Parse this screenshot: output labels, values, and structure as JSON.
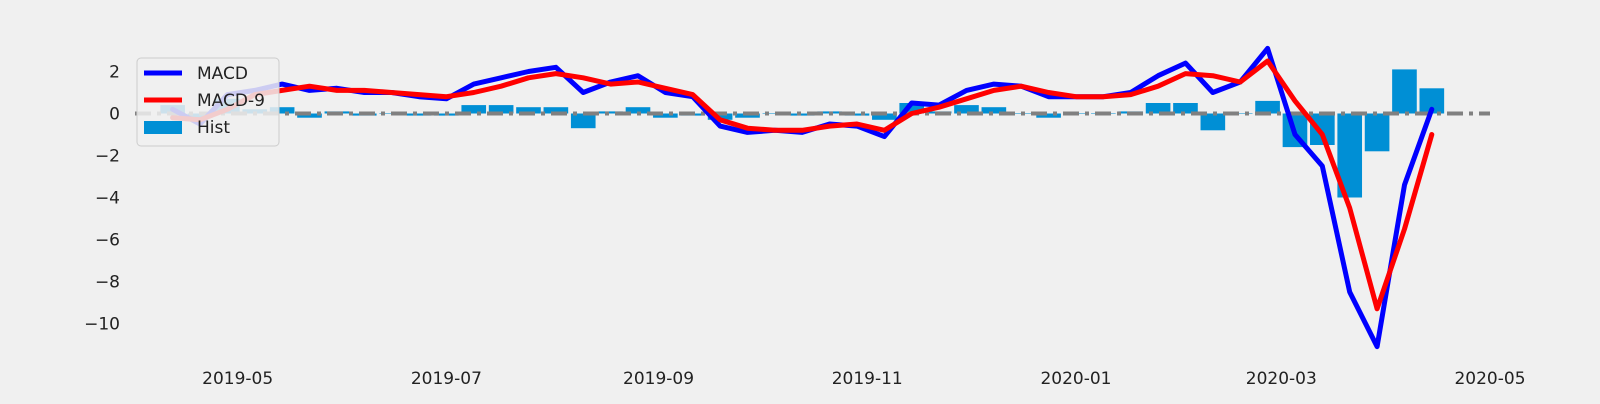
{
  "chart_data": {
    "type": "line",
    "title": "",
    "xlabel": "",
    "ylabel": "",
    "x_axis_type": "date",
    "xlim": [
      "2019-04-01",
      "2020-05-01"
    ],
    "ylim": [
      -11.5,
      3.5
    ],
    "x_ticks": [
      "2019-05",
      "2019-07",
      "2019-09",
      "2019-11",
      "2020-01",
      "2020-03",
      "2020-05"
    ],
    "y_ticks": [
      2,
      0,
      -2,
      -4,
      -6,
      -8,
      -10
    ],
    "y_tick_labels": [
      "2",
      "0",
      "−2",
      "−4",
      "−6",
      "−8",
      "−10"
    ],
    "grid": false,
    "legend_position": "top-left",
    "reference_line": {
      "y": 0,
      "style": "dash-dot",
      "color": "#808080"
    },
    "x": [
      "2019-04-12",
      "2019-04-20",
      "2019-04-28",
      "2019-05-06",
      "2019-05-14",
      "2019-05-22",
      "2019-05-30",
      "2019-06-07",
      "2019-06-15",
      "2019-06-23",
      "2019-07-01",
      "2019-07-09",
      "2019-07-17",
      "2019-07-25",
      "2019-08-02",
      "2019-08-10",
      "2019-08-18",
      "2019-08-26",
      "2019-09-03",
      "2019-09-11",
      "2019-09-19",
      "2019-09-27",
      "2019-10-05",
      "2019-10-13",
      "2019-10-21",
      "2019-10-29",
      "2019-11-06",
      "2019-11-14",
      "2019-11-22",
      "2019-11-30",
      "2019-12-08",
      "2019-12-16",
      "2019-12-24",
      "2020-01-01",
      "2020-01-09",
      "2020-01-17",
      "2020-01-25",
      "2020-02-02",
      "2020-02-10",
      "2020-02-18",
      "2020-02-26",
      "2020-03-05",
      "2020-03-13",
      "2020-03-21",
      "2020-03-29",
      "2020-04-06",
      "2020-04-14"
    ],
    "series": [
      {
        "name": "MACD",
        "color": "#0000ff",
        "kind": "line",
        "values": [
          0.2,
          -0.5,
          0.9,
          1.1,
          1.4,
          1.1,
          1.2,
          1.0,
          1.0,
          0.8,
          0.7,
          1.4,
          1.7,
          2.0,
          2.2,
          1.0,
          1.5,
          1.8,
          1.0,
          0.8,
          -0.6,
          -0.9,
          -0.8,
          -0.9,
          -0.5,
          -0.6,
          -1.1,
          0.5,
          0.4,
          1.1,
          1.4,
          1.3,
          0.8,
          0.8,
          0.8,
          1.0,
          1.8,
          2.4,
          1.0,
          1.5,
          3.1,
          -1.0,
          -2.5,
          -8.5,
          -11.1,
          -3.4,
          0.2
        ]
      },
      {
        "name": "MACD-9",
        "color": "#ff0000",
        "kind": "line",
        "values": [
          -0.2,
          -0.3,
          0.2,
          0.9,
          1.1,
          1.3,
          1.1,
          1.1,
          1.0,
          0.9,
          0.8,
          1.0,
          1.3,
          1.7,
          1.9,
          1.7,
          1.4,
          1.5,
          1.2,
          0.9,
          -0.3,
          -0.7,
          -0.8,
          -0.8,
          -0.6,
          -0.5,
          -0.8,
          0.0,
          0.3,
          0.7,
          1.1,
          1.3,
          1.0,
          0.8,
          0.8,
          0.9,
          1.3,
          1.9,
          1.8,
          1.5,
          2.5,
          0.6,
          -1.0,
          -4.5,
          -9.3,
          -5.5,
          -1.0
        ]
      },
      {
        "name": "Hist",
        "color": "#008fd5",
        "kind": "bar",
        "values": [
          0.4,
          -0.2,
          0.7,
          0.2,
          0.3,
          -0.2,
          0.1,
          -0.1,
          0.0,
          -0.1,
          -0.1,
          0.4,
          0.4,
          0.3,
          0.3,
          -0.7,
          0.1,
          0.3,
          -0.2,
          -0.1,
          -0.3,
          -0.2,
          0.0,
          -0.1,
          0.1,
          -0.1,
          -0.3,
          0.5,
          0.1,
          0.4,
          0.3,
          0.0,
          -0.2,
          0.0,
          0.0,
          0.1,
          0.5,
          0.5,
          -0.8,
          0.0,
          0.6,
          -1.6,
          -1.5,
          -4.0,
          -1.8,
          2.1,
          1.2
        ]
      }
    ]
  }
}
